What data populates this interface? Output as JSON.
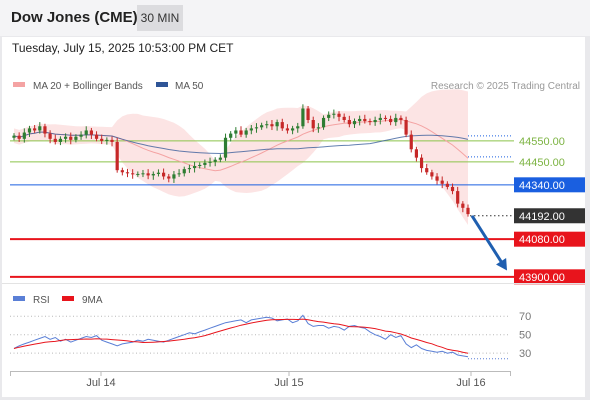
{
  "header": {
    "title": "Dow Jones (CME)",
    "timeframe": "30 MIN"
  },
  "datetime": "Tuesday, July 15, 2025 10:53:00 PM CET",
  "legend": {
    "items": [
      {
        "label": "MA 20 + Bollinger Bands",
        "color": "#f4a3a3"
      },
      {
        "label": "MA 50",
        "color": "#2f5597"
      }
    ],
    "credit": "Research © 2025 Trading Central"
  },
  "rsi_legend": {
    "items": [
      {
        "label": "RSI",
        "color": "#5a7fd6"
      },
      {
        "label": "9MA",
        "color": "#e8141c"
      }
    ]
  },
  "colors": {
    "up": "#2e7d32",
    "down": "#c62828",
    "pivot": "#1a5fe0",
    "support": "#e8141c",
    "resistance": "#8bc34a",
    "current": "#333333",
    "arrow": "#1f5fb0"
  },
  "chart_data": [
    {
      "type": "candlestick",
      "ylim": [
        43880,
        44760
      ],
      "x_ticks": [
        "Jul 14",
        "Jul 15",
        "Jul 16"
      ],
      "levels": [
        {
          "label": "44550.00",
          "value": 44550,
          "kind": "resistance"
        },
        {
          "label": "44450.00",
          "value": 44450,
          "kind": "resistance"
        },
        {
          "label": "44340.00",
          "value": 44340,
          "kind": "pivot"
        },
        {
          "label": "44192.00",
          "value": 44192,
          "kind": "current"
        },
        {
          "label": "44080.00",
          "value": 44080,
          "kind": "support"
        },
        {
          "label": "43900.00",
          "value": 43900,
          "kind": "support"
        }
      ],
      "forecast_arrow": {
        "from": 44192,
        "to": 43930
      },
      "close": [
        44575,
        44560,
        44590,
        44610,
        44600,
        44620,
        44585,
        44560,
        44545,
        44560,
        44570,
        44555,
        44570,
        44580,
        44600,
        44580,
        44560,
        44550,
        44555,
        44545,
        44410,
        44400,
        44395,
        44390,
        44392,
        44395,
        44385,
        44392,
        44398,
        44380,
        44370,
        44390,
        44395,
        44415,
        44420,
        44430,
        44435,
        44445,
        44450,
        44460,
        44470,
        44565,
        44585,
        44600,
        44580,
        44600,
        44610,
        44615,
        44625,
        44630,
        44620,
        44640,
        44610,
        44600,
        44610,
        44620,
        44705,
        44650,
        44610,
        44615,
        44660,
        44675,
        44680,
        44665,
        44650,
        44630,
        44645,
        44655,
        44645,
        44640,
        44650,
        44660,
        44655,
        44640,
        44660,
        44650,
        44580,
        44510,
        44470,
        44420,
        44400,
        44380,
        44360,
        44345,
        44330,
        44310,
        44250,
        44230,
        44200
      ],
      "rsi": [
        35,
        38,
        40,
        42,
        44,
        46,
        48,
        45,
        47,
        43,
        45,
        42,
        44,
        46,
        48,
        47,
        49,
        44,
        42,
        40,
        38,
        40,
        41,
        42,
        44,
        43,
        45,
        44,
        43,
        42,
        44,
        46,
        48,
        50,
        52,
        51,
        53,
        55,
        57,
        59,
        61,
        63,
        64,
        65,
        66,
        63,
        66,
        67,
        68,
        69,
        68,
        65,
        66,
        67,
        63,
        65,
        71,
        62,
        59,
        60,
        60,
        57,
        59,
        58,
        55,
        59,
        60,
        58,
        57,
        53,
        50,
        48,
        45,
        50,
        47,
        49,
        40,
        36,
        39,
        35,
        33,
        32,
        31,
        32,
        30,
        31,
        28,
        27,
        26
      ],
      "rsi_ticks": [
        70,
        50,
        30
      ]
    }
  ]
}
